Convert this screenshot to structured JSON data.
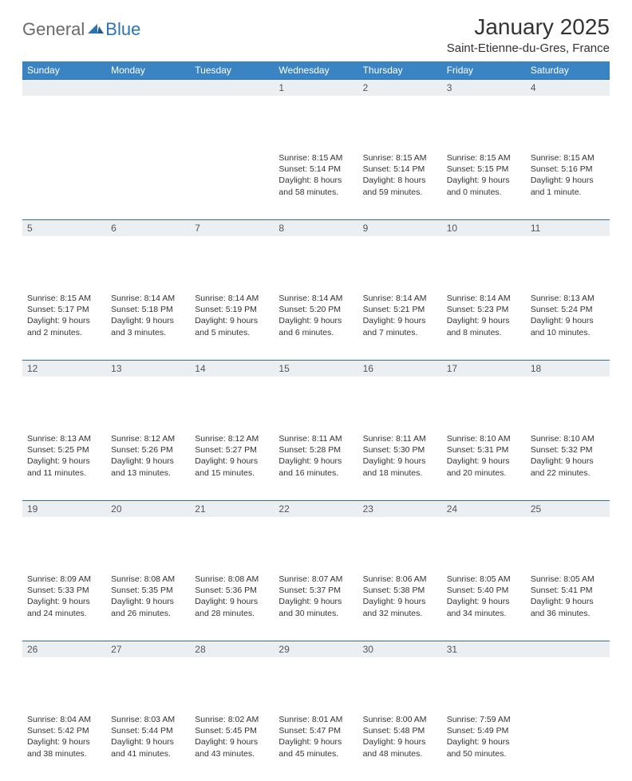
{
  "logo": {
    "text_general": "General",
    "text_blue": "Blue"
  },
  "header": {
    "title": "January 2025",
    "location": "Saint-Etienne-du-Gres, France"
  },
  "colors": {
    "header_bg": "#3b84c4",
    "header_text": "#ffffff",
    "daynum_bg": "#eceff1",
    "border": "#2f6fa8",
    "logo_gray": "#6a6a6a",
    "logo_blue": "#2a73b8",
    "body_text": "#333333"
  },
  "day_names": [
    "Sunday",
    "Monday",
    "Tuesday",
    "Wednesday",
    "Thursday",
    "Friday",
    "Saturday"
  ],
  "labels": {
    "sunrise": "Sunrise:",
    "sunset": "Sunset:",
    "daylight": "Daylight:"
  },
  "weeks": [
    [
      null,
      null,
      null,
      {
        "n": "1",
        "sunrise": "8:15 AM",
        "sunset": "5:14 PM",
        "daylight_l1": "8 hours",
        "daylight_l2": "and 58 minutes."
      },
      {
        "n": "2",
        "sunrise": "8:15 AM",
        "sunset": "5:14 PM",
        "daylight_l1": "8 hours",
        "daylight_l2": "and 59 minutes."
      },
      {
        "n": "3",
        "sunrise": "8:15 AM",
        "sunset": "5:15 PM",
        "daylight_l1": "9 hours",
        "daylight_l2": "and 0 minutes."
      },
      {
        "n": "4",
        "sunrise": "8:15 AM",
        "sunset": "5:16 PM",
        "daylight_l1": "9 hours",
        "daylight_l2": "and 1 minute."
      }
    ],
    [
      {
        "n": "5",
        "sunrise": "8:15 AM",
        "sunset": "5:17 PM",
        "daylight_l1": "9 hours",
        "daylight_l2": "and 2 minutes."
      },
      {
        "n": "6",
        "sunrise": "8:14 AM",
        "sunset": "5:18 PM",
        "daylight_l1": "9 hours",
        "daylight_l2": "and 3 minutes."
      },
      {
        "n": "7",
        "sunrise": "8:14 AM",
        "sunset": "5:19 PM",
        "daylight_l1": "9 hours",
        "daylight_l2": "and 5 minutes."
      },
      {
        "n": "8",
        "sunrise": "8:14 AM",
        "sunset": "5:20 PM",
        "daylight_l1": "9 hours",
        "daylight_l2": "and 6 minutes."
      },
      {
        "n": "9",
        "sunrise": "8:14 AM",
        "sunset": "5:21 PM",
        "daylight_l1": "9 hours",
        "daylight_l2": "and 7 minutes."
      },
      {
        "n": "10",
        "sunrise": "8:14 AM",
        "sunset": "5:23 PM",
        "daylight_l1": "9 hours",
        "daylight_l2": "and 8 minutes."
      },
      {
        "n": "11",
        "sunrise": "8:13 AM",
        "sunset": "5:24 PM",
        "daylight_l1": "9 hours",
        "daylight_l2": "and 10 minutes."
      }
    ],
    [
      {
        "n": "12",
        "sunrise": "8:13 AM",
        "sunset": "5:25 PM",
        "daylight_l1": "9 hours",
        "daylight_l2": "and 11 minutes."
      },
      {
        "n": "13",
        "sunrise": "8:12 AM",
        "sunset": "5:26 PM",
        "daylight_l1": "9 hours",
        "daylight_l2": "and 13 minutes."
      },
      {
        "n": "14",
        "sunrise": "8:12 AM",
        "sunset": "5:27 PM",
        "daylight_l1": "9 hours",
        "daylight_l2": "and 15 minutes."
      },
      {
        "n": "15",
        "sunrise": "8:11 AM",
        "sunset": "5:28 PM",
        "daylight_l1": "9 hours",
        "daylight_l2": "and 16 minutes."
      },
      {
        "n": "16",
        "sunrise": "8:11 AM",
        "sunset": "5:30 PM",
        "daylight_l1": "9 hours",
        "daylight_l2": "and 18 minutes."
      },
      {
        "n": "17",
        "sunrise": "8:10 AM",
        "sunset": "5:31 PM",
        "daylight_l1": "9 hours",
        "daylight_l2": "and 20 minutes."
      },
      {
        "n": "18",
        "sunrise": "8:10 AM",
        "sunset": "5:32 PM",
        "daylight_l1": "9 hours",
        "daylight_l2": "and 22 minutes."
      }
    ],
    [
      {
        "n": "19",
        "sunrise": "8:09 AM",
        "sunset": "5:33 PM",
        "daylight_l1": "9 hours",
        "daylight_l2": "and 24 minutes."
      },
      {
        "n": "20",
        "sunrise": "8:08 AM",
        "sunset": "5:35 PM",
        "daylight_l1": "9 hours",
        "daylight_l2": "and 26 minutes."
      },
      {
        "n": "21",
        "sunrise": "8:08 AM",
        "sunset": "5:36 PM",
        "daylight_l1": "9 hours",
        "daylight_l2": "and 28 minutes."
      },
      {
        "n": "22",
        "sunrise": "8:07 AM",
        "sunset": "5:37 PM",
        "daylight_l1": "9 hours",
        "daylight_l2": "and 30 minutes."
      },
      {
        "n": "23",
        "sunrise": "8:06 AM",
        "sunset": "5:38 PM",
        "daylight_l1": "9 hours",
        "daylight_l2": "and 32 minutes."
      },
      {
        "n": "24",
        "sunrise": "8:05 AM",
        "sunset": "5:40 PM",
        "daylight_l1": "9 hours",
        "daylight_l2": "and 34 minutes."
      },
      {
        "n": "25",
        "sunrise": "8:05 AM",
        "sunset": "5:41 PM",
        "daylight_l1": "9 hours",
        "daylight_l2": "and 36 minutes."
      }
    ],
    [
      {
        "n": "26",
        "sunrise": "8:04 AM",
        "sunset": "5:42 PM",
        "daylight_l1": "9 hours",
        "daylight_l2": "and 38 minutes."
      },
      {
        "n": "27",
        "sunrise": "8:03 AM",
        "sunset": "5:44 PM",
        "daylight_l1": "9 hours",
        "daylight_l2": "and 41 minutes."
      },
      {
        "n": "28",
        "sunrise": "8:02 AM",
        "sunset": "5:45 PM",
        "daylight_l1": "9 hours",
        "daylight_l2": "and 43 minutes."
      },
      {
        "n": "29",
        "sunrise": "8:01 AM",
        "sunset": "5:47 PM",
        "daylight_l1": "9 hours",
        "daylight_l2": "and 45 minutes."
      },
      {
        "n": "30",
        "sunrise": "8:00 AM",
        "sunset": "5:48 PM",
        "daylight_l1": "9 hours",
        "daylight_l2": "and 48 minutes."
      },
      {
        "n": "31",
        "sunrise": "7:59 AM",
        "sunset": "5:49 PM",
        "daylight_l1": "9 hours",
        "daylight_l2": "and 50 minutes."
      },
      null
    ]
  ]
}
